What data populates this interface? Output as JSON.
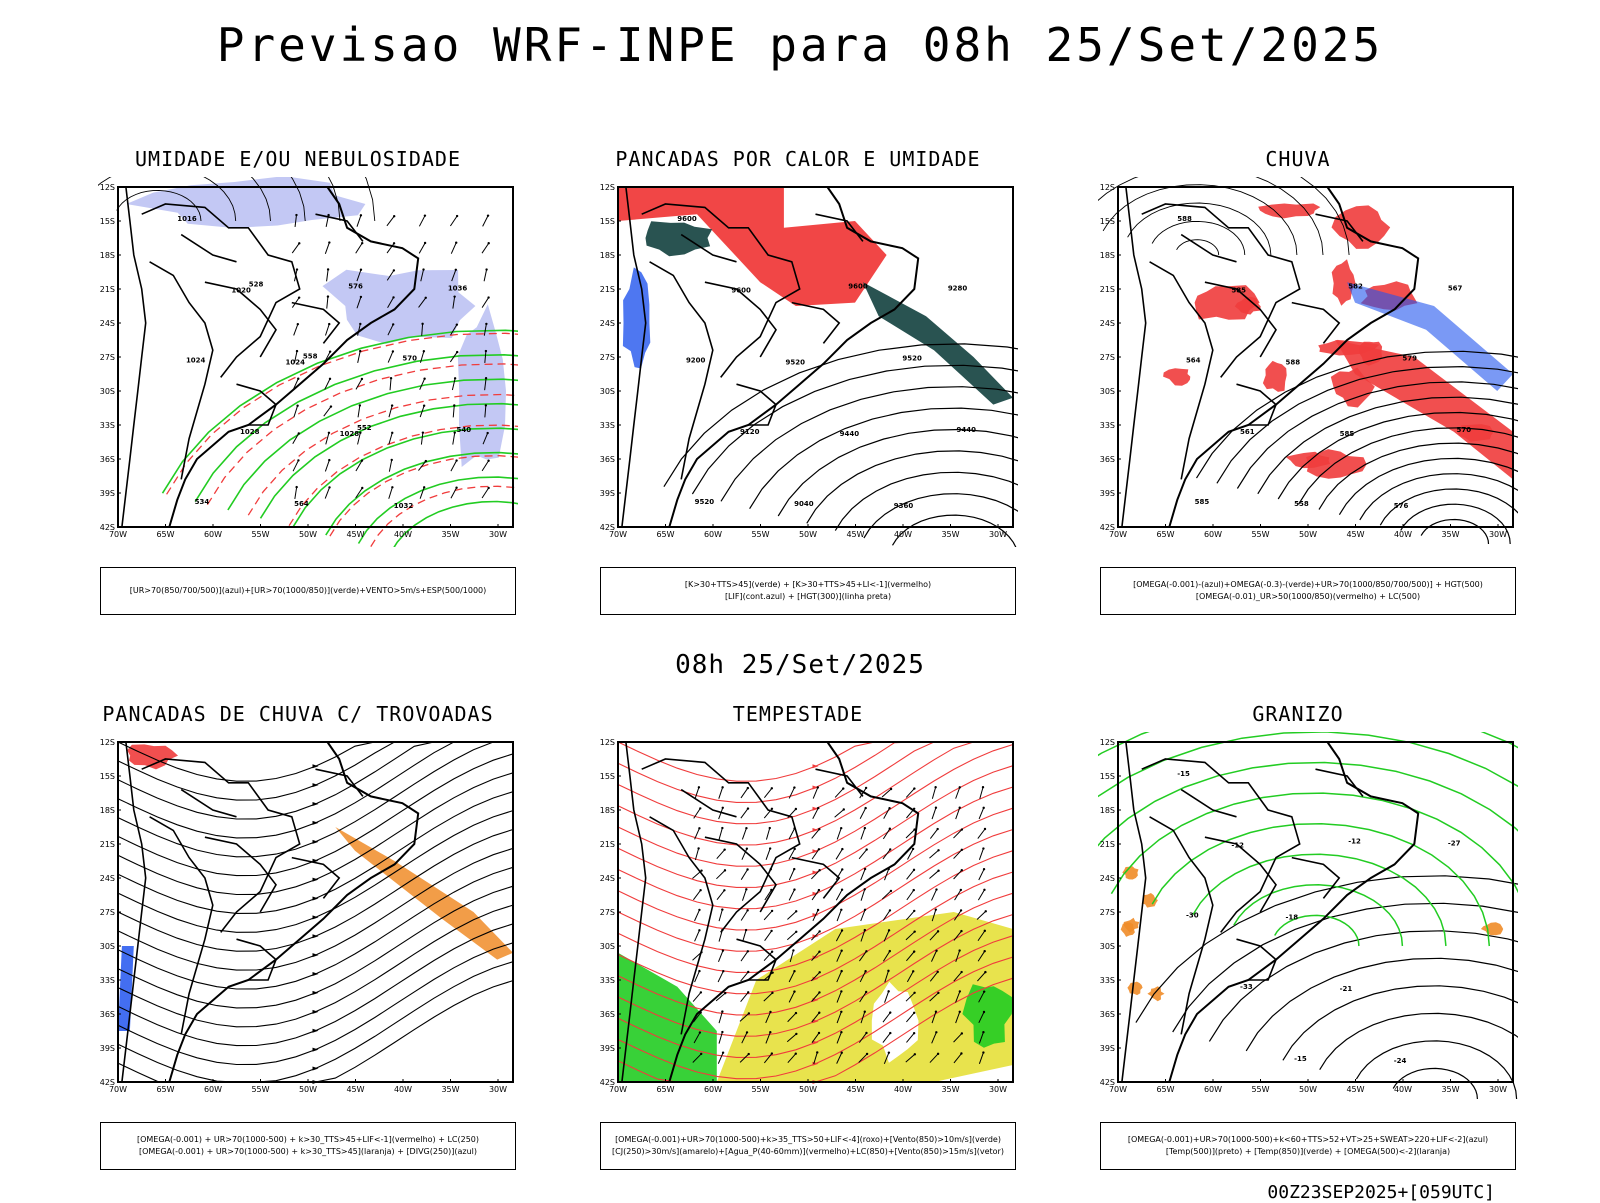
{
  "title": "Previsao WRF-INPE  para 08h 25/Set/2025",
  "subtitle": "08h 25/Set/2025",
  "footer": "00Z23SEP2025+[059UTC]",
  "axes": {
    "lat_labels": [
      "12S",
      "15S",
      "18S",
      "21S",
      "24S",
      "27S",
      "30S",
      "33S",
      "36S",
      "39S",
      "42S"
    ],
    "lon_labels": [
      "70W",
      "65W",
      "60W",
      "55W",
      "50W",
      "45W",
      "40W",
      "35W",
      "30W"
    ]
  },
  "colors": {
    "red": "#f03c3c",
    "green": "#22cc22",
    "blue": "#2255ee",
    "lavender": "#aab0f0",
    "darkteal": "#1e4a48",
    "yellow": "#e6e03a",
    "orange": "#f08c28",
    "black": "#000000"
  },
  "panels": [
    {
      "title": "UMIDADE E/OU NEBULOSIDADE",
      "legend": [
        "[UR>70(850/700/500)](azul)+[UR>70(1000/850)](verde)+VENTO>5m/s+ESP(500/1000)"
      ],
      "contour_labels": [
        "1016",
        "1020",
        "1024",
        "1028",
        "1032",
        "1036",
        "1024",
        "1028",
        "564",
        "576",
        "570",
        "540",
        "534",
        "528",
        "558",
        "552"
      ]
    },
    {
      "title": "PANCADAS POR CALOR E UMIDADE",
      "legend": [
        "[K>30+TTS>45](verde) + [K>30+TTS>45+LI<-1](vermelho)",
        "[LIF](cont.azul) + [HGT(300)](linha preta)"
      ],
      "contour_labels": [
        "9600",
        "9600",
        "9520",
        "9440",
        "9360",
        "9280",
        "9200",
        "9120",
        "9040",
        "9600",
        "9520",
        "9440",
        "9520"
      ]
    },
    {
      "title": "CHUVA",
      "legend": [
        "[OMEGA(-0.001)-(azul)+OMEGA(-0.3)-(verde)+UR>70(1000/850/700/500)] + HGT(500)",
        "[OMEGA(-0.01)_UR>50(1000/850)(vermelho) + LC(500)"
      ],
      "contour_labels": [
        "588",
        "585",
        "588",
        "585",
        "576",
        "567",
        "564",
        "561",
        "558",
        "582",
        "579",
        "570",
        "585"
      ]
    },
    {
      "title": "PANCADAS DE CHUVA C/ TROVOADAS",
      "legend": [
        "[OMEGA(-0.001) + UR>70(1000-500) + k>30_TTS>45+LIF<-1](vermelho) + LC(250)",
        "[OMEGA(-0.001) + UR>70(1000-500) + k>30_TTS>45](laranja) + [DIVG(250)](azul)"
      ],
      "contour_labels": []
    },
    {
      "title": "TEMPESTADE",
      "legend": [
        "[OMEGA(-0.001)+UR>70(1000-500)+k>35_TTS>50+LIF<-4](roxo)+[Vento(850)>10m/s](verde)",
        "[CJ(250)>30m/s](amarelo)+[Agua_P(40-60mm)](vermelho)+LC(850)+[Vento(850)>15m/s](vetor)"
      ],
      "contour_labels": []
    },
    {
      "title": "GRANIZO",
      "legend": [
        "[OMEGA(-0.001)+UR>70(1000-500)+k<60+TTS>52+VT>25+SWEAT>220+LIF<-2](azul)",
        "[Temp(500)](preto) + [Temp(850)](verde) + [OMEGA(500)<-2](laranja)"
      ],
      "contour_labels": [
        "-15",
        "-12",
        "-18",
        "-21",
        "-24",
        "-27",
        "-30",
        "-33",
        "-15",
        "-12"
      ]
    }
  ]
}
